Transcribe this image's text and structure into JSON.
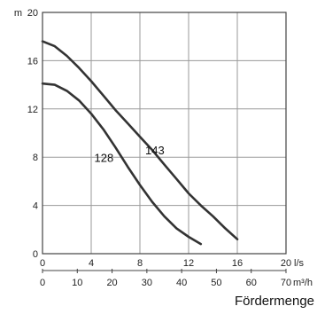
{
  "chart_data": {
    "type": "line",
    "title": "",
    "xlabel": "Fördermenge",
    "ylabel": "",
    "y_unit": "m",
    "x_unit": "l/s",
    "secondary_x_unit": "m³/h",
    "ylim": [
      0,
      20
    ],
    "xlim": [
      0,
      20
    ],
    "secondary_xlim": [
      0,
      70
    ],
    "grid": true,
    "x_ticks": [
      "0",
      "4",
      "8",
      "12",
      "16",
      "20"
    ],
    "secondary_x_ticks": [
      "0",
      "10",
      "20",
      "30",
      "40",
      "50",
      "60",
      "70"
    ],
    "y_ticks": [
      "0",
      "4",
      "8",
      "12",
      "16",
      "20"
    ],
    "series": [
      {
        "name": "128",
        "color": "#333333",
        "x": [
          0,
          1,
          2,
          3,
          4,
          5,
          6,
          7,
          8,
          9,
          10,
          11,
          12,
          13
        ],
        "y": [
          14.1,
          14.0,
          13.5,
          12.7,
          11.6,
          10.3,
          8.8,
          7.2,
          5.7,
          4.3,
          3.1,
          2.1,
          1.4,
          0.8
        ]
      },
      {
        "name": "143",
        "color": "#333333",
        "x": [
          0,
          1,
          2,
          3,
          4,
          5,
          6,
          7,
          8,
          9,
          10,
          11,
          12,
          13,
          14,
          15,
          16
        ],
        "y": [
          17.6,
          17.2,
          16.4,
          15.4,
          14.3,
          13.1,
          11.9,
          10.8,
          9.7,
          8.6,
          7.4,
          6.2,
          5.0,
          4.0,
          3.1,
          2.1,
          1.2
        ]
      }
    ]
  },
  "colors": {
    "axis": "#444444",
    "grid": "#9a9a9a",
    "curve": "#333333",
    "background": "#ffffff"
  }
}
